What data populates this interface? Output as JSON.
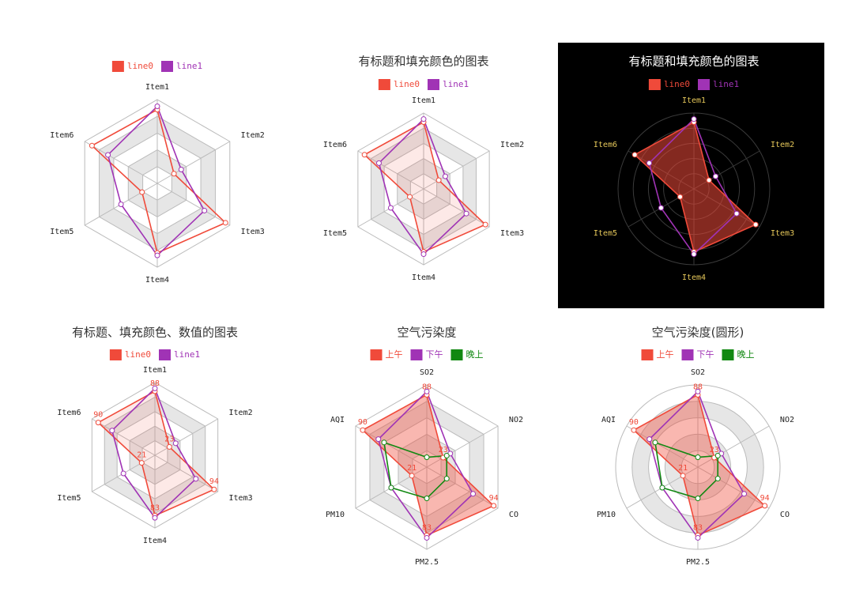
{
  "chart_data": [
    {
      "type": "radar",
      "categories": [
        "Item1",
        "Item2",
        "Item3",
        "Item4",
        "Item5",
        "Item6"
      ],
      "series": [
        {
          "name": "line0",
          "color": "#f04a3a",
          "values": [
            88,
            23,
            94,
            83,
            21,
            90
          ]
        },
        {
          "name": "line1",
          "color": "#a033b5",
          "values": [
            92,
            33,
            65,
            86,
            50,
            68
          ]
        }
      ],
      "rlim": [
        0,
        100
      ],
      "rticks": [
        20,
        40,
        60,
        80,
        100
      ],
      "shape": "polygon",
      "split_area": true
    },
    {
      "type": "radar",
      "title": "有标题和填充颜色的图表",
      "categories": [
        "Item1",
        "Item2",
        "Item3",
        "Item4",
        "Item5",
        "Item6"
      ],
      "series": [
        {
          "name": "line0",
          "color": "#f04a3a",
          "values": [
            88,
            23,
            94,
            83,
            21,
            90
          ],
          "fill_opacity": 0.12
        },
        {
          "name": "line1",
          "color": "#a033b5",
          "values": [
            92,
            33,
            65,
            86,
            50,
            68
          ]
        }
      ],
      "rlim": [
        0,
        100
      ],
      "rticks": [
        20,
        40,
        60,
        80,
        100
      ],
      "shape": "polygon",
      "split_area": true
    },
    {
      "type": "radar",
      "title": "有标题和填充颜色的图表",
      "categories": [
        "Item1",
        "Item2",
        "Item3",
        "Item4",
        "Item5",
        "Item6"
      ],
      "series": [
        {
          "name": "line0",
          "color": "#f04a3a",
          "values": [
            88,
            23,
            94,
            83,
            21,
            90
          ],
          "fill_opacity": 0.55
        },
        {
          "name": "line1",
          "color": "#a033b5",
          "values": [
            92,
            33,
            65,
            86,
            50,
            68
          ]
        }
      ],
      "rlim": [
        0,
        100
      ],
      "rticks": [
        20,
        40,
        60,
        80,
        100
      ],
      "shape": "circle",
      "split_area": false,
      "background": "#000000",
      "text_color": "#ffffff",
      "axis_label_color": "#e6c85a",
      "grid_color": "#3a3a3a"
    },
    {
      "type": "radar",
      "title": "有标题、填充颜色、数值的图表",
      "categories": [
        "Item1",
        "Item2",
        "Item3",
        "Item4",
        "Item5",
        "Item6"
      ],
      "series": [
        {
          "name": "line0",
          "color": "#f04a3a",
          "values": [
            88,
            23,
            94,
            83,
            21,
            90
          ],
          "fill_opacity": 0.12,
          "show_values": true
        },
        {
          "name": "line1",
          "color": "#a033b5",
          "values": [
            92,
            33,
            65,
            86,
            50,
            68
          ]
        }
      ],
      "rlim": [
        0,
        100
      ],
      "rticks": [
        20,
        40,
        60,
        80,
        100
      ],
      "shape": "polygon",
      "split_area": true
    },
    {
      "type": "radar",
      "title": "空气污染度",
      "categories": [
        "SO2",
        "NO2",
        "CO",
        "PM2.5",
        "PM10",
        "AQI"
      ],
      "series": [
        {
          "name": "上午",
          "color": "#f04a3a",
          "values": [
            88,
            23,
            94,
            83,
            21,
            90
          ],
          "fill_opacity": 0.4,
          "show_values": true
        },
        {
          "name": "下午",
          "color": "#a033b5",
          "values": [
            92,
            33,
            65,
            86,
            50,
            68
          ]
        },
        {
          "name": "晚上",
          "color": "#118811",
          "values": [
            12,
            28,
            28,
            38,
            50,
            60
          ]
        }
      ],
      "rlim": [
        0,
        100
      ],
      "rticks": [
        20,
        40,
        60,
        80,
        100
      ],
      "shape": "polygon",
      "split_area": true
    },
    {
      "type": "radar",
      "title": "空气污染度(圆形)",
      "categories": [
        "SO2",
        "NO2",
        "CO",
        "PM2.5",
        "PM10",
        "AQI"
      ],
      "series": [
        {
          "name": "上午",
          "color": "#f04a3a",
          "values": [
            88,
            23,
            94,
            83,
            21,
            90
          ],
          "fill_opacity": 0.4,
          "show_values": true
        },
        {
          "name": "下午",
          "color": "#a033b5",
          "values": [
            92,
            33,
            65,
            86,
            50,
            68
          ]
        },
        {
          "name": "晚上",
          "color": "#118811",
          "values": [
            12,
            28,
            28,
            38,
            50,
            60
          ]
        }
      ],
      "rlim": [
        0,
        100
      ],
      "rticks": [
        20,
        40,
        60,
        80,
        100
      ],
      "shape": "circle",
      "split_area": true
    }
  ]
}
